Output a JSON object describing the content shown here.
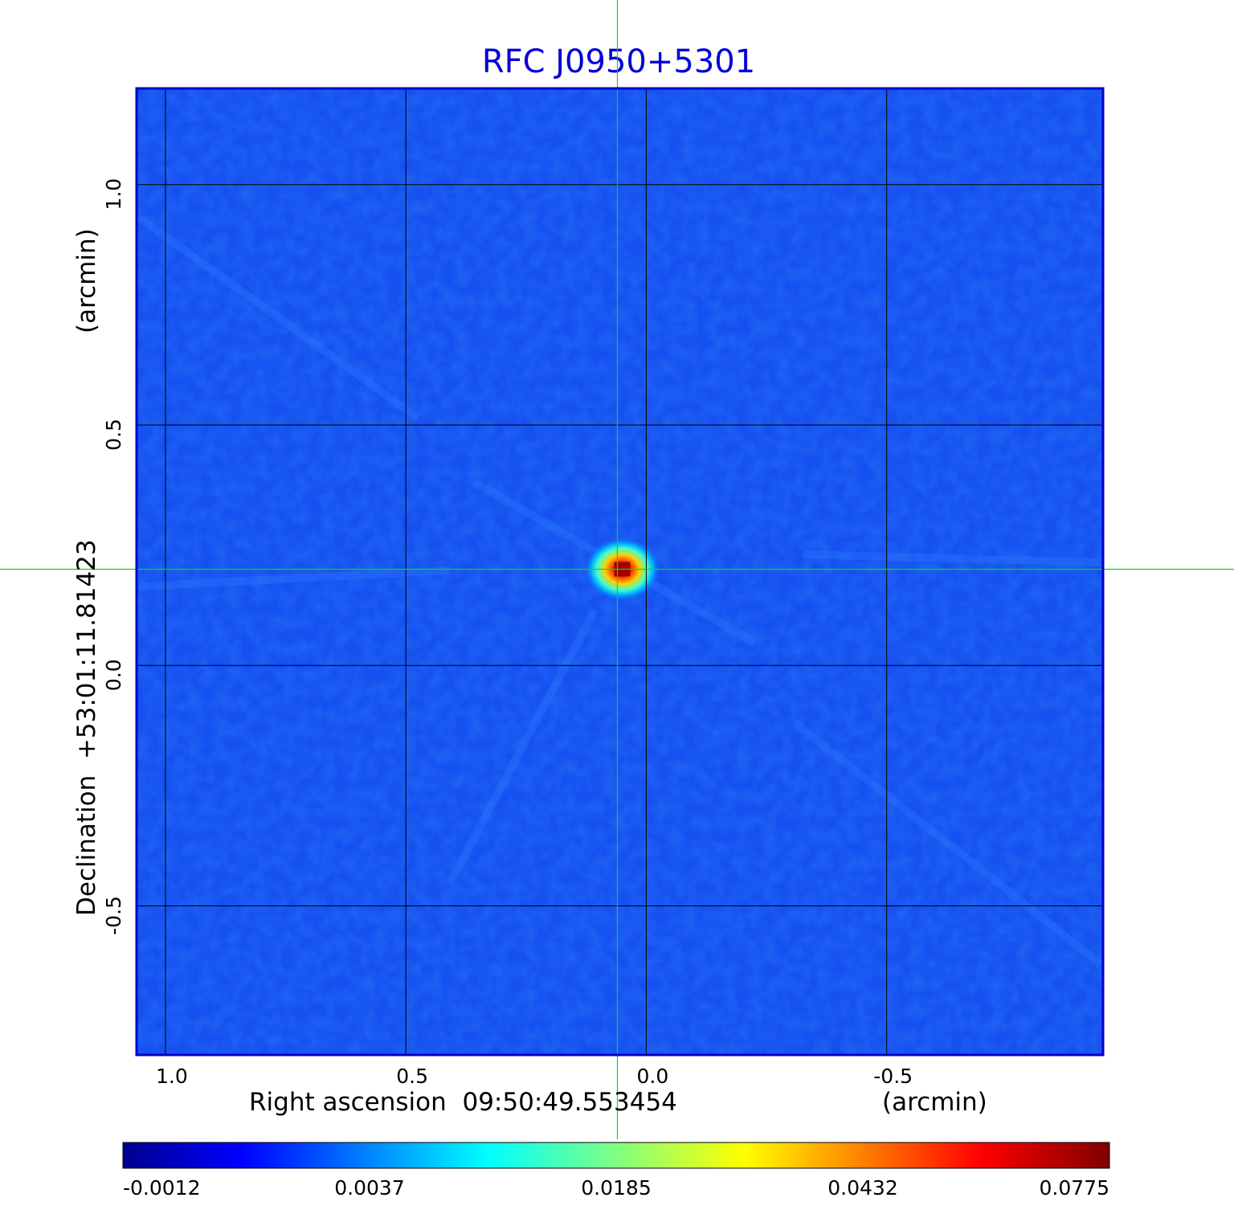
{
  "chart_data": {
    "type": "heatmap",
    "title": "RFC J0950+5301",
    "xlabel": "Right ascension  09:50:49.553454",
    "xunit": "(arcmin)",
    "ylabel": "Declination  +53:01:11.81423",
    "yunit": "(arcmin)",
    "x_ticks": [
      "1.0",
      "0.5",
      "0.0",
      "-0.5"
    ],
    "y_ticks": [
      "1.0",
      "0.5",
      "0.0",
      "-0.5"
    ],
    "xlim": [
      1.06,
      -0.95
    ],
    "ylim": [
      -0.81,
      1.2
    ],
    "grid": true,
    "crosshair": {
      "x": 0.06,
      "y": 0.2
    },
    "source": {
      "x": 0.05,
      "y": 0.2,
      "peak": 0.0775
    },
    "colorbar": {
      "ticks": [
        "-0.0012",
        "0.0037",
        "0.0185",
        "0.0432",
        "0.0775"
      ],
      "colormap": "jet"
    }
  },
  "colors": {
    "title": "#0000d8",
    "frame": "#0000cc",
    "crosshair": "#00e000",
    "grid": "#000000",
    "background_map": "#1650f0"
  }
}
